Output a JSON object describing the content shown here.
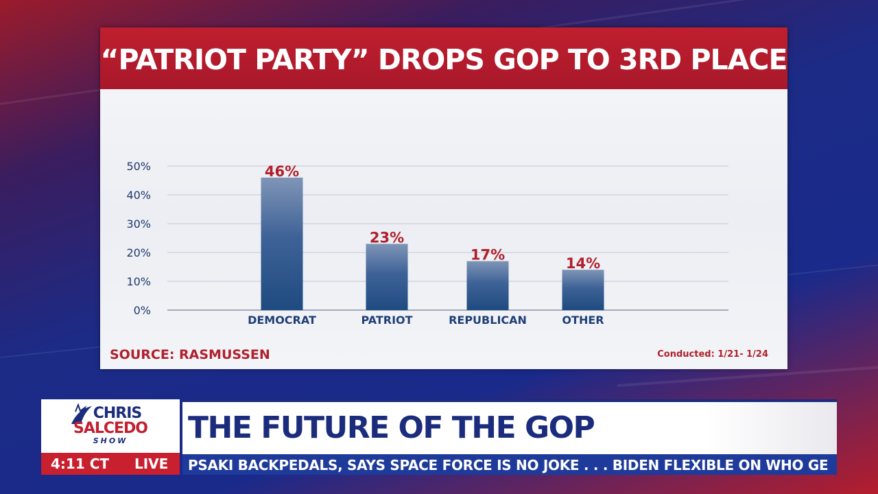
{
  "chart_data": {
    "type": "bar",
    "title": "“PATRIOT PARTY” DROPS GOP TO 3RD PLACE",
    "categories": [
      "DEMOCRAT",
      "PATRIOT",
      "REPUBLICAN",
      "OTHER"
    ],
    "values": [
      46,
      23,
      17,
      14
    ],
    "value_labels": [
      "46%",
      "23%",
      "17%",
      "14%"
    ],
    "yticks": [
      "0%",
      "10%",
      "20%",
      "30%",
      "40%",
      "50%"
    ],
    "ylim": [
      0,
      50
    ],
    "grid": true,
    "xlabel": "",
    "ylabel": "",
    "bar_color": "#1f4b80",
    "label_color": "#b01f2c"
  },
  "source": "SOURCE: RASMUSSEN",
  "conducted": "Conducted: 1/21- 1/24",
  "show": {
    "name_line1": "CHRIS",
    "name_line2": "SALCEDO",
    "name_line3": "SHOW",
    "icon": "liberty-icon"
  },
  "clock": "4:11 CT",
  "live": "LIVE",
  "headline": "THE FUTURE OF THE GOP",
  "ticker": "PSAKI BACKPEDALS, SAYS SPACE FORCE IS NO JOKE . . .      BIDEN FLEXIBLE ON WHO GE",
  "colors": {
    "brand_red": "#c8202f",
    "brand_blue": "#1b2c7c",
    "ticker_blue": "#1e3a9a"
  }
}
